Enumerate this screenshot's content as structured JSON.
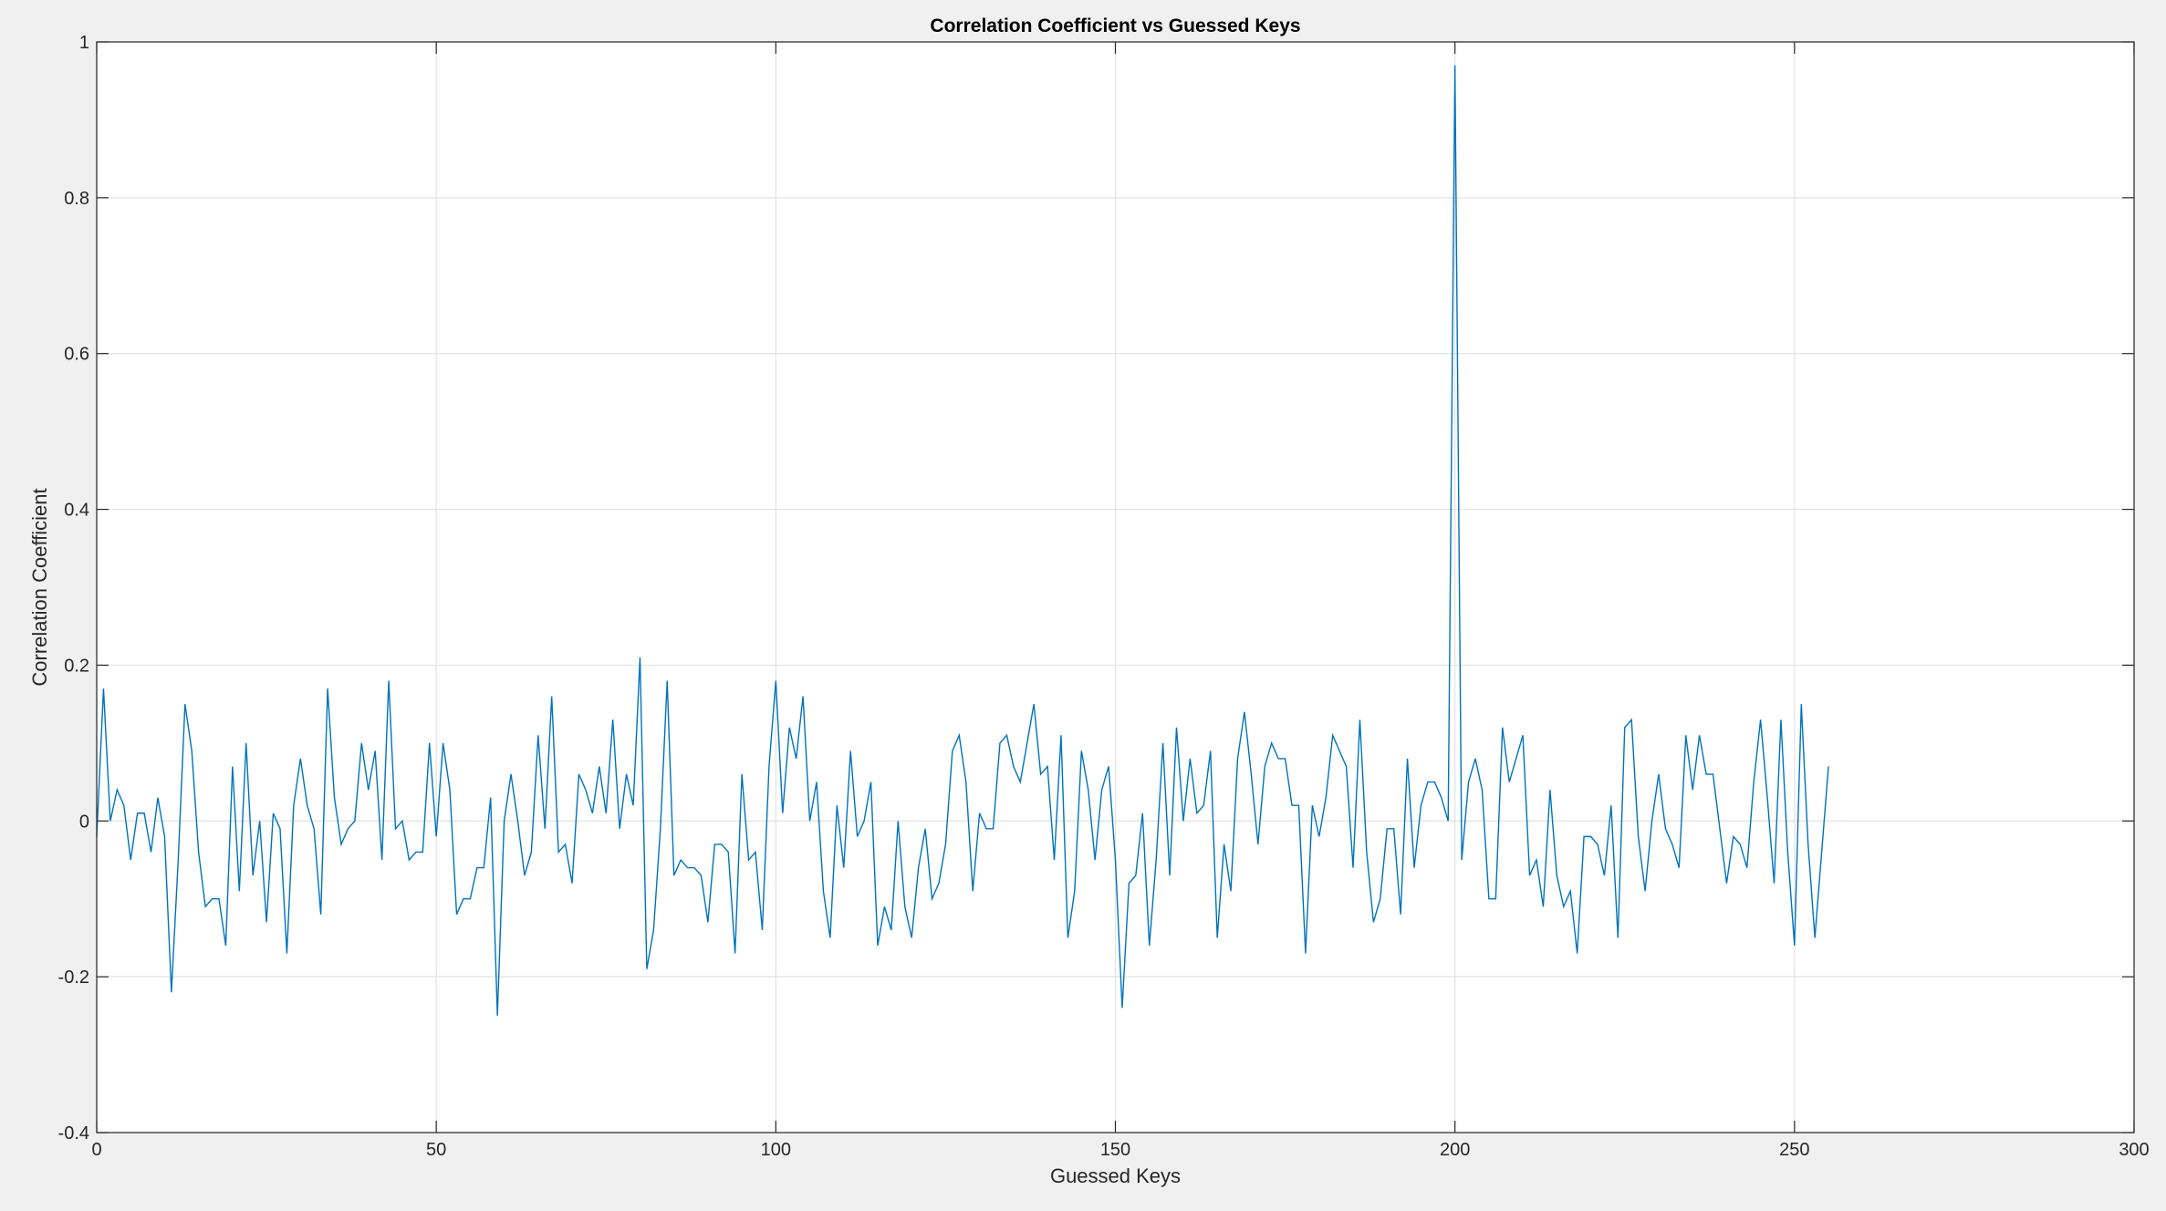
{
  "chart_data": {
    "type": "line",
    "title": "Correlation Coefficient vs Guessed Keys",
    "xlabel": "Guessed Keys",
    "ylabel": "Correlation Coefficient",
    "xlim": [
      0,
      300
    ],
    "ylim": [
      -0.4,
      1
    ],
    "xticks": [
      0,
      50,
      100,
      150,
      200,
      250,
      300
    ],
    "yticks": [
      -0.4,
      -0.2,
      0,
      0.2,
      0.4,
      0.6,
      0.8,
      1
    ],
    "xtick_labels": [
      "0",
      "50",
      "100",
      "150",
      "200",
      "250",
      "300"
    ],
    "ytick_labels": [
      "-0.4",
      "-0.2",
      "0",
      "0.2",
      "0.4",
      "0.6",
      "0.8",
      "1"
    ],
    "grid": true,
    "line_color": "#0072bd",
    "series": [
      {
        "x_start": 0,
        "x_step": 1,
        "values": [
          -0.02,
          0.17,
          0.0,
          0.04,
          0.02,
          -0.05,
          0.01,
          0.01,
          -0.04,
          0.03,
          -0.02,
          -0.22,
          -0.05,
          0.15,
          0.09,
          -0.04,
          -0.11,
          -0.1,
          -0.1,
          -0.16,
          0.07,
          -0.09,
          0.1,
          -0.07,
          0.0,
          -0.13,
          0.01,
          -0.01,
          -0.17,
          0.02,
          0.08,
          0.02,
          -0.01,
          -0.12,
          0.17,
          0.03,
          -0.03,
          -0.01,
          0.0,
          0.1,
          0.04,
          0.09,
          -0.05,
          0.18,
          -0.01,
          0.0,
          -0.05,
          -0.04,
          -0.04,
          0.1,
          -0.02,
          0.1,
          0.04,
          -0.12,
          -0.1,
          -0.1,
          -0.06,
          -0.06,
          0.03,
          -0.25,
          0.0,
          0.06,
          0.0,
          -0.07,
          -0.04,
          0.11,
          -0.01,
          0.16,
          -0.04,
          -0.03,
          -0.08,
          0.06,
          0.04,
          0.01,
          0.07,
          0.01,
          0.13,
          -0.01,
          0.06,
          0.02,
          0.21,
          -0.19,
          -0.14,
          -0.01,
          0.18,
          -0.07,
          -0.05,
          -0.06,
          -0.06,
          -0.07,
          -0.13,
          -0.03,
          -0.03,
          -0.04,
          -0.17,
          0.06,
          -0.05,
          -0.04,
          -0.14,
          0.07,
          0.18,
          0.01,
          0.12,
          0.08,
          0.16,
          0.0,
          0.05,
          -0.09,
          -0.15,
          0.02,
          -0.06,
          0.09,
          -0.02,
          0.0,
          0.05,
          -0.16,
          -0.11,
          -0.14,
          0.0,
          -0.11,
          -0.15,
          -0.06,
          -0.01,
          -0.1,
          -0.08,
          -0.03,
          0.09,
          0.11,
          0.05,
          -0.09,
          0.01,
          -0.01,
          -0.01,
          0.1,
          0.11,
          0.07,
          0.05,
          0.1,
          0.15,
          0.06,
          0.07,
          -0.05,
          0.11,
          -0.15,
          -0.09,
          0.09,
          0.04,
          -0.05,
          0.04,
          0.07,
          -0.05,
          -0.24,
          -0.08,
          -0.07,
          0.01,
          -0.16,
          -0.05,
          0.1,
          -0.07,
          0.12,
          0.0,
          0.08,
          0.01,
          0.02,
          0.09,
          -0.15,
          -0.03,
          -0.09,
          0.08,
          0.14,
          0.06,
          -0.03,
          0.07,
          0.1,
          0.08,
          0.08,
          0.02,
          0.02,
          -0.17,
          0.02,
          -0.02,
          0.03,
          0.11,
          0.09,
          0.07,
          -0.06,
          0.13,
          -0.04,
          -0.13,
          -0.1,
          -0.01,
          -0.01,
          -0.12,
          0.08,
          -0.06,
          0.02,
          0.05,
          0.05,
          0.03,
          0.0,
          0.97,
          -0.05,
          0.05,
          0.08,
          0.04,
          -0.1,
          -0.1,
          0.12,
          0.05,
          0.08,
          0.11,
          -0.07,
          -0.05,
          -0.11,
          0.04,
          -0.07,
          -0.11,
          -0.09,
          -0.17,
          -0.02,
          -0.02,
          -0.03,
          -0.07,
          0.02,
          -0.15,
          0.12,
          0.13,
          -0.02,
          -0.09,
          0.0,
          0.06,
          -0.01,
          -0.03,
          -0.06,
          0.11,
          0.04,
          0.11,
          0.06,
          0.06,
          -0.01,
          -0.08,
          -0.02,
          -0.03,
          -0.06,
          0.05,
          0.13,
          0.03,
          -0.08,
          0.13,
          -0.04,
          -0.16,
          0.15,
          -0.03,
          -0.15,
          -0.04,
          0.07
        ]
      }
    ]
  }
}
